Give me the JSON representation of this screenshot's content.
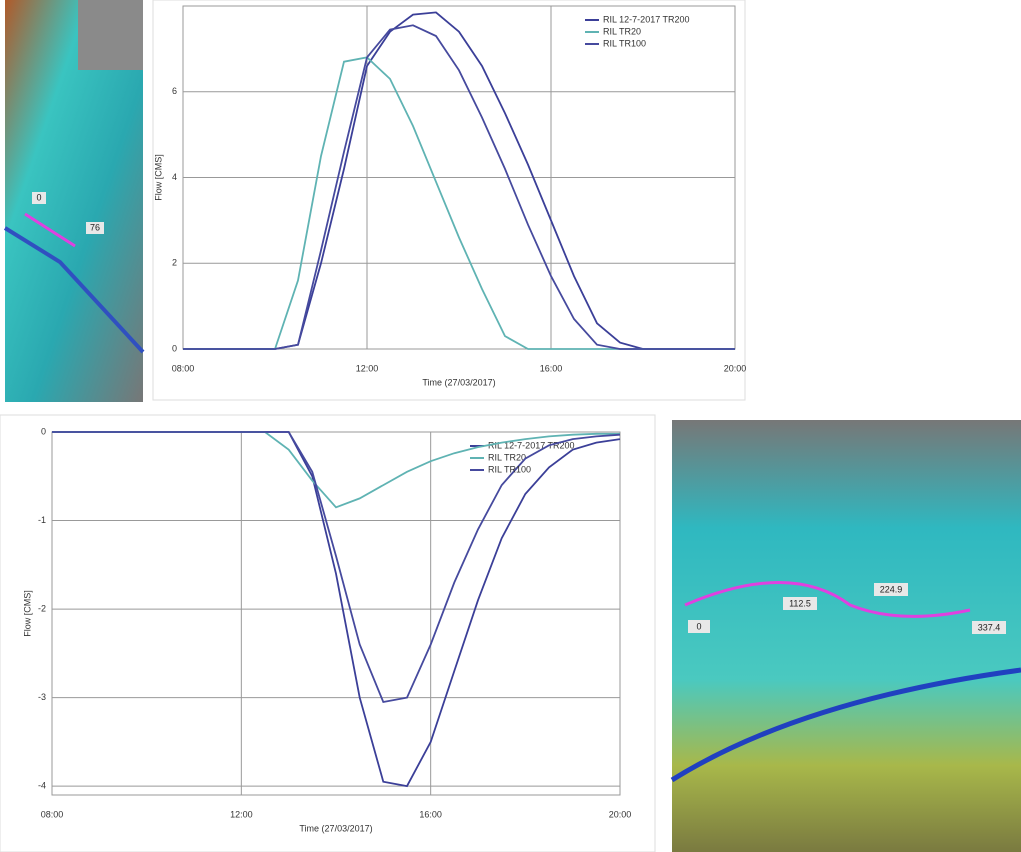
{
  "chart_data": [
    {
      "type": "line",
      "x_label": "Time (27/03/2017)",
      "y_label": "Flow [CMS]",
      "x": [
        8,
        8.5,
        9,
        9.5,
        10,
        10.5,
        11,
        11.5,
        12,
        12.5,
        13,
        13.5,
        14,
        14.5,
        15,
        15.5,
        16,
        16.5,
        17,
        17.5,
        18,
        18.5,
        19,
        19.5,
        20
      ],
      "series": [
        {
          "name": "RIL 12-7-2017 TR200",
          "color": "#3b3f98",
          "values": [
            0,
            0,
            0,
            0,
            0,
            0.1,
            2.0,
            4.2,
            6.6,
            7.4,
            7.8,
            7.85,
            7.4,
            6.6,
            5.5,
            4.3,
            3.0,
            1.7,
            0.6,
            0.15,
            0,
            0,
            0,
            0,
            0
          ]
        },
        {
          "name": "RIL TR20",
          "color": "#5fb3b3",
          "values": [
            0,
            0,
            0,
            0,
            0,
            1.6,
            4.5,
            6.7,
            6.8,
            6.3,
            5.2,
            3.9,
            2.6,
            1.4,
            0.3,
            0,
            0,
            0,
            0,
            0,
            0,
            0,
            0,
            0,
            0
          ]
        },
        {
          "name": "RIL TR100",
          "color": "#464a9e",
          "values": [
            0,
            0,
            0,
            0,
            0,
            0.1,
            2.3,
            4.6,
            6.8,
            7.45,
            7.55,
            7.3,
            6.5,
            5.4,
            4.2,
            2.9,
            1.7,
            0.7,
            0.1,
            0,
            0,
            0,
            0,
            0,
            0
          ]
        }
      ],
      "xlim": [
        8,
        20
      ],
      "xticks": [
        {
          "value": 8,
          "label": "08:00"
        },
        {
          "value": 12,
          "label": "12:00"
        },
        {
          "value": 16,
          "label": "16:00"
        },
        {
          "value": 20,
          "label": "20:00"
        }
      ],
      "ylim": [
        0,
        8
      ],
      "yticks": [
        0,
        2,
        4,
        6
      ],
      "grid": true,
      "legend": "top-right"
    },
    {
      "type": "line",
      "x_label": "Time (27/03/2017)",
      "y_label": "Flow [CMS]",
      "x": [
        8,
        8.5,
        9,
        9.5,
        10,
        10.5,
        11,
        11.5,
        12,
        12.5,
        13,
        13.5,
        14,
        14.5,
        15,
        15.5,
        16,
        16.5,
        17,
        17.5,
        18,
        18.5,
        19,
        19.5,
        20
      ],
      "series": [
        {
          "name": "RIL 12-7-2017 TR200",
          "color": "#3b3f98",
          "values": [
            0,
            0,
            0,
            0,
            0,
            0,
            0,
            0,
            0,
            0,
            0,
            -0.5,
            -1.6,
            -3.0,
            -3.95,
            -4.0,
            -3.5,
            -2.7,
            -1.9,
            -1.2,
            -0.7,
            -0.4,
            -0.2,
            -0.12,
            -0.08
          ]
        },
        {
          "name": "RIL TR20",
          "color": "#5fb3b3",
          "values": [
            0,
            0,
            0,
            0,
            0,
            0,
            0,
            0,
            0,
            0,
            -0.2,
            -0.55,
            -0.85,
            -0.75,
            -0.6,
            -0.45,
            -0.33,
            -0.24,
            -0.17,
            -0.12,
            -0.08,
            -0.05,
            -0.03,
            -0.02,
            -0.02
          ]
        },
        {
          "name": "RIL TR100",
          "color": "#464a9e",
          "values": [
            0,
            0,
            0,
            0,
            0,
            0,
            0,
            0,
            0,
            0,
            0,
            -0.45,
            -1.4,
            -2.4,
            -3.05,
            -3.0,
            -2.4,
            -1.7,
            -1.1,
            -0.6,
            -0.3,
            -0.15,
            -0.08,
            -0.05,
            -0.03
          ]
        }
      ],
      "xlim": [
        8,
        20
      ],
      "xticks": [
        {
          "value": 8,
          "label": "08:00"
        },
        {
          "value": 12,
          "label": "12:00"
        },
        {
          "value": 16,
          "label": "16:00"
        },
        {
          "value": 20,
          "label": "20:00"
        }
      ],
      "ylim": [
        -4.1,
        0
      ],
      "yticks": [
        0,
        -1,
        -2,
        -3,
        -4
      ],
      "grid": true,
      "legend": "top-right"
    }
  ],
  "maps": [
    {
      "labels": [
        "0",
        "76"
      ]
    },
    {
      "labels": [
        "0",
        "112.5",
        "224.9",
        "337.4"
      ]
    }
  ]
}
